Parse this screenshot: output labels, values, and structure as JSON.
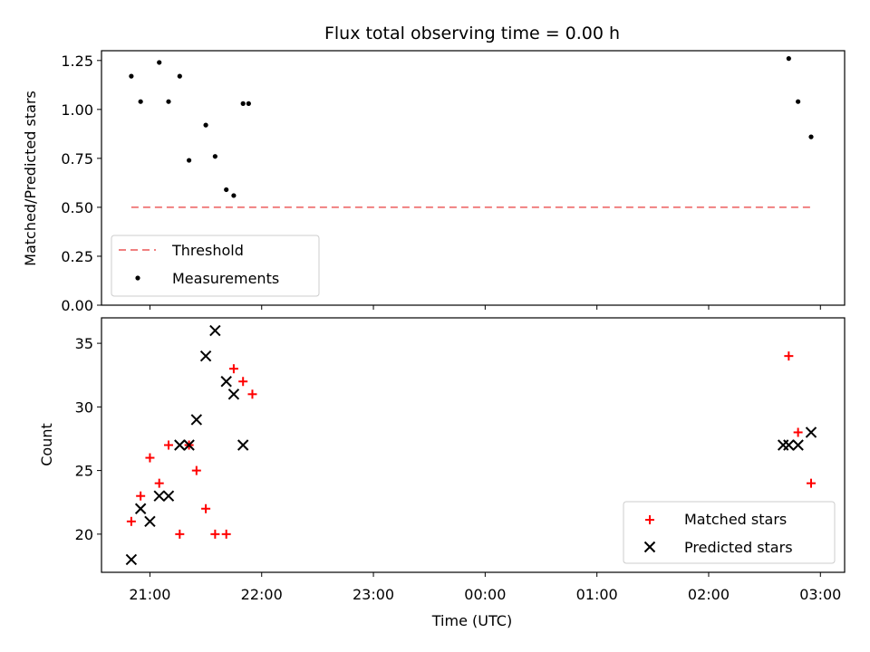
{
  "chart_data": [
    {
      "type": "scatter",
      "title": "Flux total observing time = 0.00 h",
      "xlabel": "",
      "ylabel": "Matched/Predicted stars",
      "ylim": [
        0,
        1.3
      ],
      "xlim": [
        "20:34",
        "03:13"
      ],
      "yticks": [
        "0.00",
        "0.25",
        "0.50",
        "0.75",
        "1.00",
        "1.25"
      ],
      "grid": false,
      "legend_position": "lower-left",
      "threshold": {
        "name": "Threshold",
        "y": 0.5,
        "x_start": "20:50",
        "x_end": "02:55",
        "color": "#f08080",
        "style": "dashed"
      },
      "series": [
        {
          "name": "Measurements",
          "color": "#000000",
          "marker": "dot",
          "x": [
            "20:50",
            "20:55",
            "21:05",
            "21:10",
            "21:16",
            "21:21",
            "21:30",
            "21:35",
            "21:41",
            "21:45",
            "21:50",
            "21:53",
            "02:43",
            "02:48",
            "02:55"
          ],
          "y": [
            1.17,
            1.04,
            1.24,
            1.04,
            1.17,
            0.74,
            0.92,
            0.76,
            0.59,
            0.56,
            1.03,
            1.03,
            1.26,
            1.04,
            0.86
          ]
        }
      ]
    },
    {
      "type": "scatter",
      "xlabel": "Time (UTC)",
      "ylabel": "Count",
      "ylim": [
        17,
        37
      ],
      "yticks": [
        "20",
        "25",
        "30",
        "35"
      ],
      "xticks": [
        "21:00",
        "22:00",
        "23:00",
        "00:00",
        "01:00",
        "02:00",
        "03:00"
      ],
      "grid": false,
      "legend_position": "lower-right",
      "series": [
        {
          "name": "Matched stars",
          "color": "#ff0000",
          "marker": "plus",
          "x": [
            "20:50",
            "20:55",
            "21:00",
            "21:05",
            "21:10",
            "21:16",
            "21:21",
            "21:25",
            "21:30",
            "21:35",
            "21:41",
            "21:45",
            "21:50",
            "21:55",
            "02:43",
            "02:48",
            "02:55"
          ],
          "y": [
            21,
            23,
            26,
            24,
            27,
            20,
            27,
            25,
            22,
            20,
            20,
            33,
            32,
            31,
            34,
            28,
            24
          ]
        },
        {
          "name": "Predicted stars",
          "color": "#000000",
          "marker": "x",
          "x": [
            "20:50",
            "20:55",
            "21:00",
            "21:05",
            "21:10",
            "21:16",
            "21:21",
            "21:25",
            "21:30",
            "21:35",
            "21:41",
            "21:45",
            "21:50",
            "02:40",
            "02:43",
            "02:48",
            "02:55"
          ],
          "y": [
            18,
            22,
            21,
            23,
            23,
            27,
            27,
            29,
            34,
            36,
            32,
            31,
            27,
            27,
            27,
            27,
            28
          ]
        }
      ]
    }
  ]
}
